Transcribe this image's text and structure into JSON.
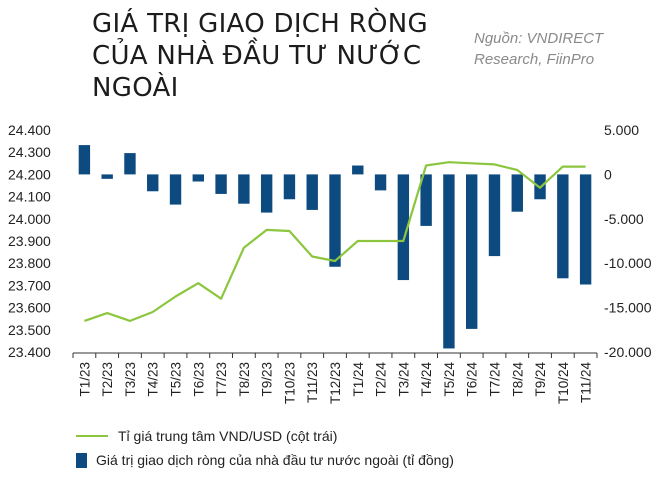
{
  "title_lines": [
    "GIÁ TRỊ GIAO DỊCH RÒNG",
    "CỦA NHÀ ĐẦU TƯ NƯỚC",
    "NGOÀI"
  ],
  "source_lines": [
    "Nguồn: VNDIRECT",
    "Research, FiinPro"
  ],
  "colors": {
    "bar": "#0d4a80",
    "line": "#8cc63e",
    "axis": "#333333"
  },
  "chart_data": {
    "type": "bar+line",
    "categories": [
      "T1/23",
      "T2/23",
      "T3/23",
      "T4/23",
      "T5/23",
      "T6/23",
      "T7/23",
      "T8/23",
      "T9/23",
      "T10/23",
      "T11/23",
      "T12/23",
      "T1/24",
      "T2/24",
      "T3/24",
      "T4/24",
      "T5/24",
      "T6/24",
      "T7/24",
      "T8/24",
      "T9/24",
      "T10/24",
      "T11/24"
    ],
    "left_axis": {
      "ylim": [
        23400,
        24400
      ],
      "ticks": [
        "24.400",
        "24.300",
        "24.200",
        "24.100",
        "24.000",
        "23.900",
        "23.800",
        "23.700",
        "23.600",
        "23.500",
        "23.400"
      ]
    },
    "right_axis": {
      "ylim": [
        -20000,
        5000
      ],
      "ticks": [
        "5.000",
        "0",
        "-5.000",
        "-10.000",
        "-15.000",
        "-20.000"
      ]
    },
    "series": [
      {
        "name": "Tỉ giá trung tâm VND/USD (cột trái)",
        "type": "line",
        "axis": "left",
        "values": [
          23540,
          23575,
          23540,
          23580,
          23650,
          23710,
          23640,
          23870,
          23950,
          23945,
          23830,
          23810,
          23900,
          23900,
          23900,
          24240,
          24255,
          24250,
          24245,
          24220,
          24140,
          24235,
          24235
        ]
      },
      {
        "name": "Giá trị giao dịch ròng của nhà đầu tư nước ngoài (tỉ đồng)",
        "type": "bar",
        "axis": "right",
        "values": [
          3300,
          -500,
          2400,
          -1900,
          -3400,
          -800,
          -2200,
          -3300,
          -4300,
          -2800,
          -4000,
          -10400,
          1000,
          -1800,
          -11900,
          -5800,
          -19600,
          -17400,
          -9200,
          -4200,
          -2800,
          -11700,
          -12400
        ]
      }
    ]
  }
}
